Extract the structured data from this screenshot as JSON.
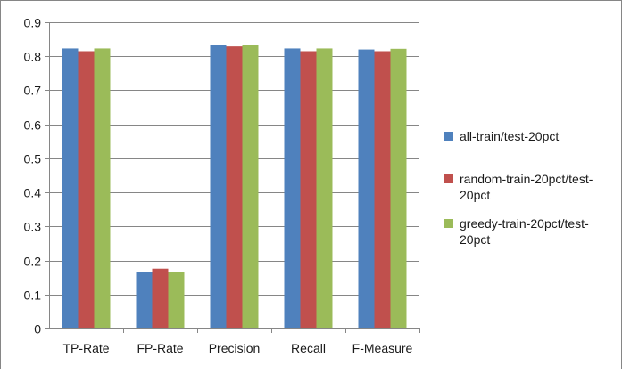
{
  "chart_data": {
    "type": "bar",
    "title": "",
    "xlabel": "",
    "ylabel": "",
    "categories": [
      "TP-Rate",
      "FP-Rate",
      "Precision",
      "Recall",
      "F-Measure"
    ],
    "series": [
      {
        "name": "all-train/test-20pct",
        "color": "#4F81BD",
        "values": [
          0.823,
          0.167,
          0.834,
          0.823,
          0.82
        ]
      },
      {
        "name": "random-train-20pct/test-20pct",
        "color": "#C0504D",
        "values": [
          0.815,
          0.176,
          0.829,
          0.815,
          0.815
        ]
      },
      {
        "name": "greedy-train-20pct/test-20pct",
        "color": "#9BBB59",
        "values": [
          0.823,
          0.167,
          0.834,
          0.823,
          0.822
        ]
      }
    ],
    "ylim": [
      0,
      0.9
    ],
    "yticks": [
      "0",
      "0.1",
      "0.2",
      "0.3",
      "0.4",
      "0.5",
      "0.6",
      "0.7",
      "0.8",
      "0.9"
    ],
    "grid": true,
    "legend_position": "right"
  },
  "legend_lines": [
    [
      "all-train/test-20pct"
    ],
    [
      "random-train-20pct/test-",
      "20pct"
    ],
    [
      "greedy-train-20pct/test-",
      "20pct"
    ]
  ]
}
